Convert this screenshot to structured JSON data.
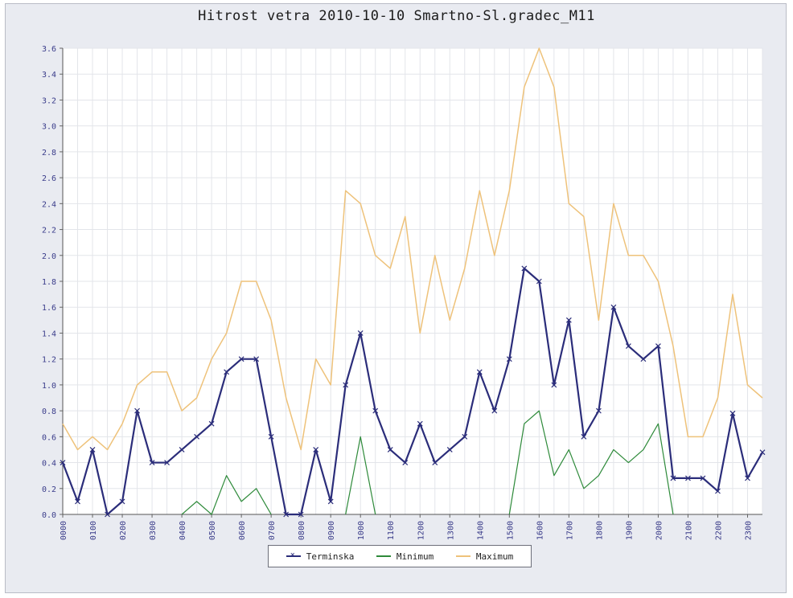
{
  "colors": {
    "terminska": "#2b2d7a",
    "minimum": "#2e8a3a",
    "maximum": "#eec27a",
    "plot_bg": "#ffffff",
    "frame_bg": "#e9ebf1",
    "grid": "#e3e5ea",
    "tick_text": "#3a3c8a"
  },
  "chart_data": {
    "type": "line",
    "title": "Hitrost vetra 2010-10-10 Smartno-Sl.gradec_M11",
    "xlabel": "",
    "ylabel": "",
    "ylim": [
      0,
      3.6
    ],
    "yticks": [
      "0.0",
      "0.2",
      "0.4",
      "0.6",
      "0.8",
      "1.0",
      "1.2",
      "1.4",
      "1.6",
      "1.8",
      "2.0",
      "2.2",
      "2.4",
      "2.6",
      "2.8",
      "3.0",
      "3.2",
      "3.4",
      "3.6"
    ],
    "xtick_labels": [
      "0000",
      "0100",
      "0200",
      "0300",
      "0400",
      "0500",
      "0600",
      "0700",
      "0800",
      "0900",
      "1000",
      "1100",
      "1200",
      "1300",
      "1400",
      "1500",
      "1600",
      "1700",
      "1800",
      "1900",
      "2000",
      "2100",
      "2200",
      "2300"
    ],
    "x_hours": [
      0,
      0.5,
      1,
      1.5,
      2,
      2.5,
      3,
      3.5,
      4,
      4.5,
      5,
      5.5,
      6,
      6.5,
      7,
      7.5,
      8,
      8.5,
      9,
      9.5,
      10,
      10.5,
      11,
      11.5,
      12,
      12.5,
      13,
      13.5,
      14,
      14.5,
      15,
      15.5,
      16,
      16.5,
      17,
      17.5,
      18,
      18.5,
      19,
      19.5,
      20,
      20.5,
      21,
      21.5,
      22,
      22.5,
      23,
      23.5
    ],
    "grid": true,
    "legend_position": "bottom-center",
    "series": [
      {
        "name": "Terminska",
        "marker": "x",
        "values": [
          0.4,
          0.1,
          0.5,
          0.0,
          0.1,
          0.8,
          0.4,
          0.4,
          0.5,
          0.6,
          0.7,
          1.1,
          1.2,
          1.2,
          0.6,
          0.0,
          0.0,
          0.5,
          0.1,
          1.0,
          1.4,
          0.8,
          0.5,
          0.4,
          0.7,
          0.4,
          0.5,
          0.6,
          1.1,
          0.8,
          1.2,
          1.9,
          1.8,
          1.0,
          1.5,
          0.6,
          0.8,
          1.6,
          1.3,
          1.2,
          1.3,
          0.28,
          0.28,
          0.28,
          0.18,
          0.78,
          0.28,
          0.48
        ]
      },
      {
        "name": "Minimum",
        "marker": "none",
        "values": [
          null,
          null,
          null,
          null,
          null,
          null,
          null,
          null,
          0.0,
          0.1,
          0.0,
          0.3,
          0.1,
          0.2,
          0.0,
          null,
          null,
          null,
          null,
          0.0,
          0.6,
          0.0,
          null,
          null,
          null,
          null,
          null,
          null,
          null,
          null,
          0.0,
          0.7,
          0.8,
          0.3,
          0.5,
          0.2,
          0.3,
          0.5,
          0.4,
          0.5,
          0.7,
          0.0,
          null,
          null,
          null,
          null,
          null,
          null
        ]
      },
      {
        "name": "Maximum",
        "marker": "none",
        "values": [
          0.7,
          0.5,
          0.6,
          0.5,
          0.7,
          1.0,
          1.1,
          1.1,
          0.8,
          0.9,
          1.2,
          1.4,
          1.8,
          1.8,
          1.5,
          0.9,
          0.5,
          1.2,
          1.0,
          2.5,
          2.4,
          2.0,
          1.9,
          2.3,
          1.4,
          2.0,
          1.5,
          1.9,
          2.5,
          2.0,
          2.5,
          3.3,
          3.6,
          3.3,
          2.4,
          2.3,
          1.5,
          2.4,
          2.0,
          2.0,
          1.8,
          1.3,
          0.6,
          0.6,
          0.9,
          1.7,
          1.0,
          0.9
        ]
      }
    ]
  }
}
